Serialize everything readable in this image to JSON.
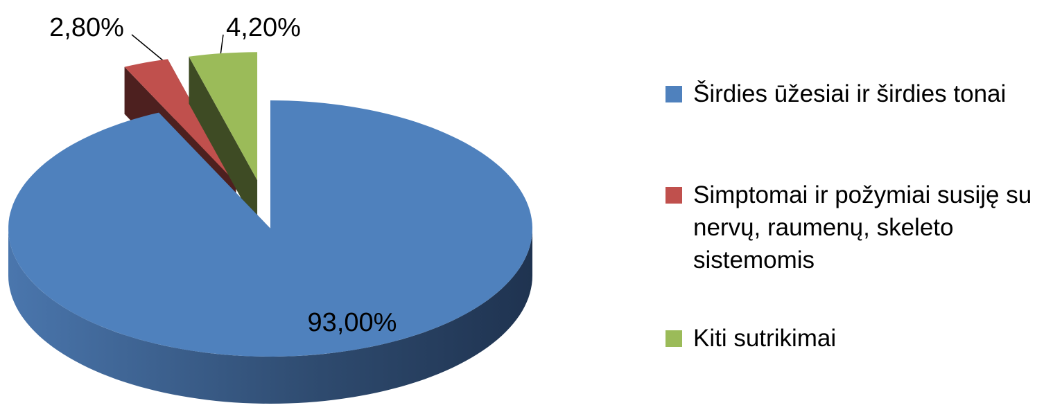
{
  "chart_data": {
    "type": "pie",
    "categories": [
      "Širdies ūžesiai ir širdies tonai",
      "Simptomai ir požymiai susiję su nervų, raumenų, skeleto sistemomis",
      "Kiti sutrikimai"
    ],
    "values": [
      93,
      2.8,
      4.2
    ],
    "value_labels": [
      "93,00%",
      "2,80%",
      "4,20%"
    ],
    "colors": [
      "#4f81bd",
      "#c0504d",
      "#9bbb59"
    ],
    "legend": "right"
  }
}
